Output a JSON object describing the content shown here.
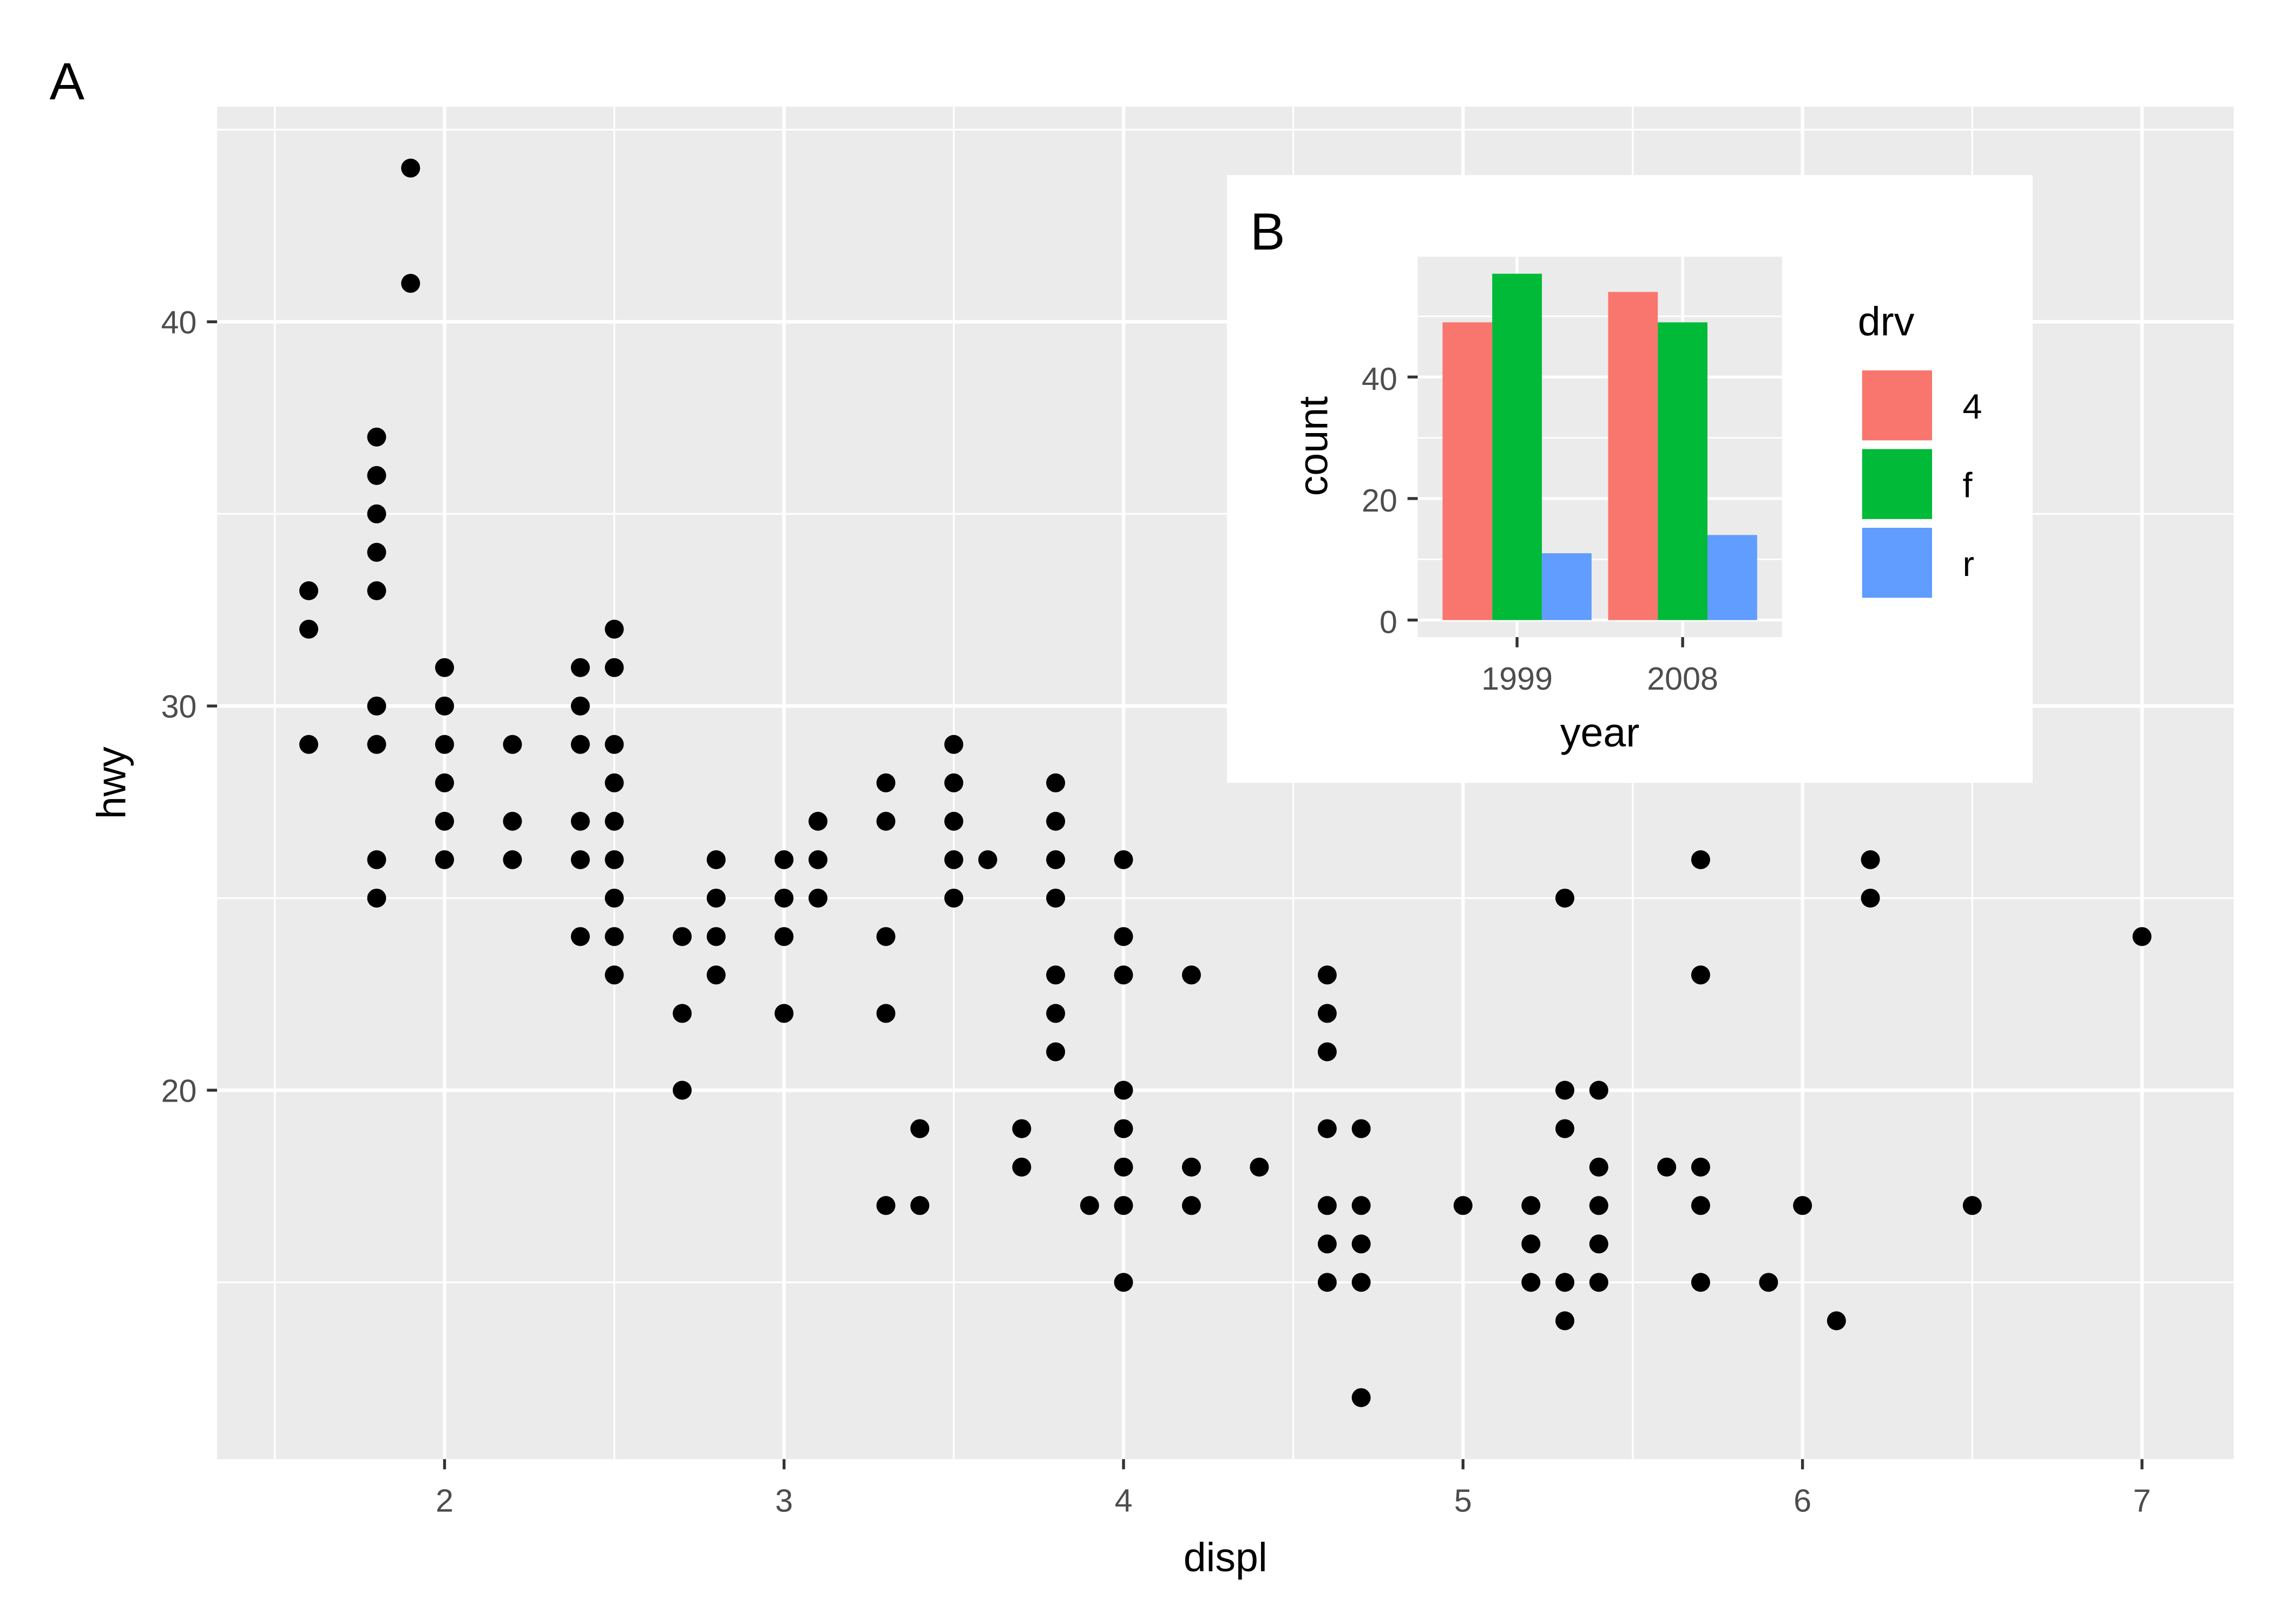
{
  "chart_data": [
    {
      "tag": "A",
      "type": "scatter",
      "xlabel": "displ",
      "ylabel": "hwy",
      "xlim": [
        1.33,
        7.27
      ],
      "ylim": [
        10.4,
        45.6
      ],
      "xticks": [
        2,
        3,
        4,
        5,
        6,
        7
      ],
      "yticks": [
        20,
        30,
        40
      ],
      "grid": true,
      "background": "#ebebeb",
      "point_color": "#000000",
      "points": [
        [
          1.6,
          33
        ],
        [
          1.6,
          32
        ],
        [
          1.6,
          29
        ],
        [
          1.8,
          37
        ],
        [
          1.8,
          36
        ],
        [
          1.8,
          35
        ],
        [
          1.8,
          34
        ],
        [
          1.8,
          33
        ],
        [
          1.8,
          30
        ],
        [
          1.8,
          29
        ],
        [
          1.8,
          26
        ],
        [
          1.8,
          25
        ],
        [
          1.9,
          44
        ],
        [
          1.9,
          41
        ],
        [
          2.0,
          31
        ],
        [
          2.0,
          30
        ],
        [
          2.0,
          29
        ],
        [
          2.0,
          28
        ],
        [
          2.0,
          27
        ],
        [
          2.0,
          26
        ],
        [
          2.2,
          29
        ],
        [
          2.2,
          27
        ],
        [
          2.2,
          26
        ],
        [
          2.4,
          31
        ],
        [
          2.4,
          30
        ],
        [
          2.4,
          29
        ],
        [
          2.4,
          27
        ],
        [
          2.4,
          26
        ],
        [
          2.4,
          24
        ],
        [
          2.5,
          32
        ],
        [
          2.5,
          31
        ],
        [
          2.5,
          29
        ],
        [
          2.5,
          28
        ],
        [
          2.5,
          27
        ],
        [
          2.5,
          26
        ],
        [
          2.5,
          25
        ],
        [
          2.5,
          24
        ],
        [
          2.5,
          23
        ],
        [
          2.7,
          24
        ],
        [
          2.7,
          22
        ],
        [
          2.7,
          20
        ],
        [
          2.8,
          26
        ],
        [
          2.8,
          25
        ],
        [
          2.8,
          24
        ],
        [
          2.8,
          23
        ],
        [
          3.0,
          26
        ],
        [
          3.0,
          25
        ],
        [
          3.0,
          24
        ],
        [
          3.0,
          22
        ],
        [
          3.1,
          27
        ],
        [
          3.1,
          26
        ],
        [
          3.1,
          25
        ],
        [
          3.3,
          28
        ],
        [
          3.3,
          27
        ],
        [
          3.3,
          24
        ],
        [
          3.3,
          22
        ],
        [
          3.3,
          17
        ],
        [
          3.4,
          19
        ],
        [
          3.4,
          17
        ],
        [
          3.5,
          29
        ],
        [
          3.5,
          28
        ],
        [
          3.5,
          27
        ],
        [
          3.5,
          26
        ],
        [
          3.5,
          25
        ],
        [
          3.6,
          26
        ],
        [
          3.7,
          19
        ],
        [
          3.7,
          18
        ],
        [
          3.8,
          28
        ],
        [
          3.8,
          27
        ],
        [
          3.8,
          26
        ],
        [
          3.8,
          25
        ],
        [
          3.8,
          23
        ],
        [
          3.8,
          22
        ],
        [
          3.8,
          21
        ],
        [
          3.9,
          17
        ],
        [
          4.0,
          26
        ],
        [
          4.0,
          24
        ],
        [
          4.0,
          23
        ],
        [
          4.0,
          20
        ],
        [
          4.0,
          19
        ],
        [
          4.0,
          18
        ],
        [
          4.0,
          17
        ],
        [
          4.0,
          15
        ],
        [
          4.2,
          23
        ],
        [
          4.2,
          18
        ],
        [
          4.2,
          17
        ],
        [
          4.4,
          18
        ],
        [
          4.6,
          23
        ],
        [
          4.6,
          22
        ],
        [
          4.6,
          21
        ],
        [
          4.6,
          19
        ],
        [
          4.6,
          17
        ],
        [
          4.6,
          16
        ],
        [
          4.6,
          15
        ],
        [
          4.7,
          19
        ],
        [
          4.7,
          17
        ],
        [
          4.7,
          16
        ],
        [
          4.7,
          15
        ],
        [
          4.7,
          12
        ],
        [
          5.0,
          17
        ],
        [
          5.2,
          17
        ],
        [
          5.2,
          16
        ],
        [
          5.2,
          15
        ],
        [
          5.3,
          25
        ],
        [
          5.3,
          20
        ],
        [
          5.3,
          19
        ],
        [
          5.3,
          15
        ],
        [
          5.3,
          14
        ],
        [
          5.4,
          20
        ],
        [
          5.4,
          18
        ],
        [
          5.4,
          17
        ],
        [
          5.4,
          16
        ],
        [
          5.4,
          15
        ],
        [
          5.6,
          18
        ],
        [
          5.7,
          26
        ],
        [
          5.7,
          23
        ],
        [
          5.7,
          18
        ],
        [
          5.7,
          17
        ],
        [
          5.7,
          15
        ],
        [
          5.9,
          15
        ],
        [
          6.0,
          17
        ],
        [
          6.1,
          14
        ],
        [
          6.2,
          26
        ],
        [
          6.2,
          25
        ],
        [
          6.5,
          17
        ],
        [
          7.0,
          24
        ]
      ]
    },
    {
      "tag": "B",
      "type": "bar",
      "xlabel": "year",
      "ylabel": "count",
      "categories": [
        "1999",
        "2008"
      ],
      "ylim": [
        -2.8,
        59.8
      ],
      "yticks": [
        0,
        20,
        40
      ],
      "grid": true,
      "background": "#ebebeb",
      "legend": {
        "title": "drv",
        "position": "right"
      },
      "series": [
        {
          "name": "4",
          "color": "#F8766D",
          "values": [
            49,
            54
          ]
        },
        {
          "name": "f",
          "color": "#00BA38",
          "values": [
            57,
            49
          ]
        },
        {
          "name": "r",
          "color": "#619CFF",
          "values": [
            11,
            14
          ]
        }
      ]
    }
  ]
}
